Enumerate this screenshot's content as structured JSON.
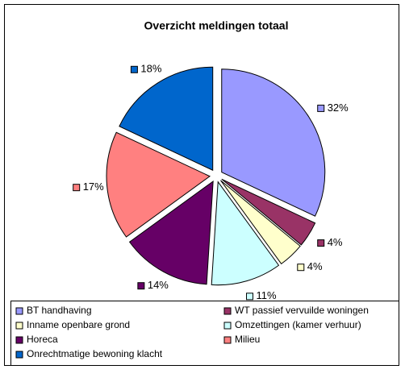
{
  "chart_data": {
    "type": "pie",
    "title": "Overzicht meldingen totaal",
    "categories": [
      "BT handhaving",
      "WT passief vervuilde woningen",
      "Inname openbare grond",
      "Omzettingen (kamer verhuur)",
      "Horeca",
      "Milieu",
      "Onrechtmatige bewoning klacht"
    ],
    "values": [
      32,
      4,
      4,
      11,
      14,
      17,
      18
    ],
    "value_labels": [
      "32%",
      "4%",
      "4%",
      "11%",
      "14%",
      "17%",
      "18%"
    ],
    "colors": [
      "#9999ff",
      "#993366",
      "#ffffcc",
      "#ccffff",
      "#660066",
      "#ff8080",
      "#0066cc"
    ]
  }
}
